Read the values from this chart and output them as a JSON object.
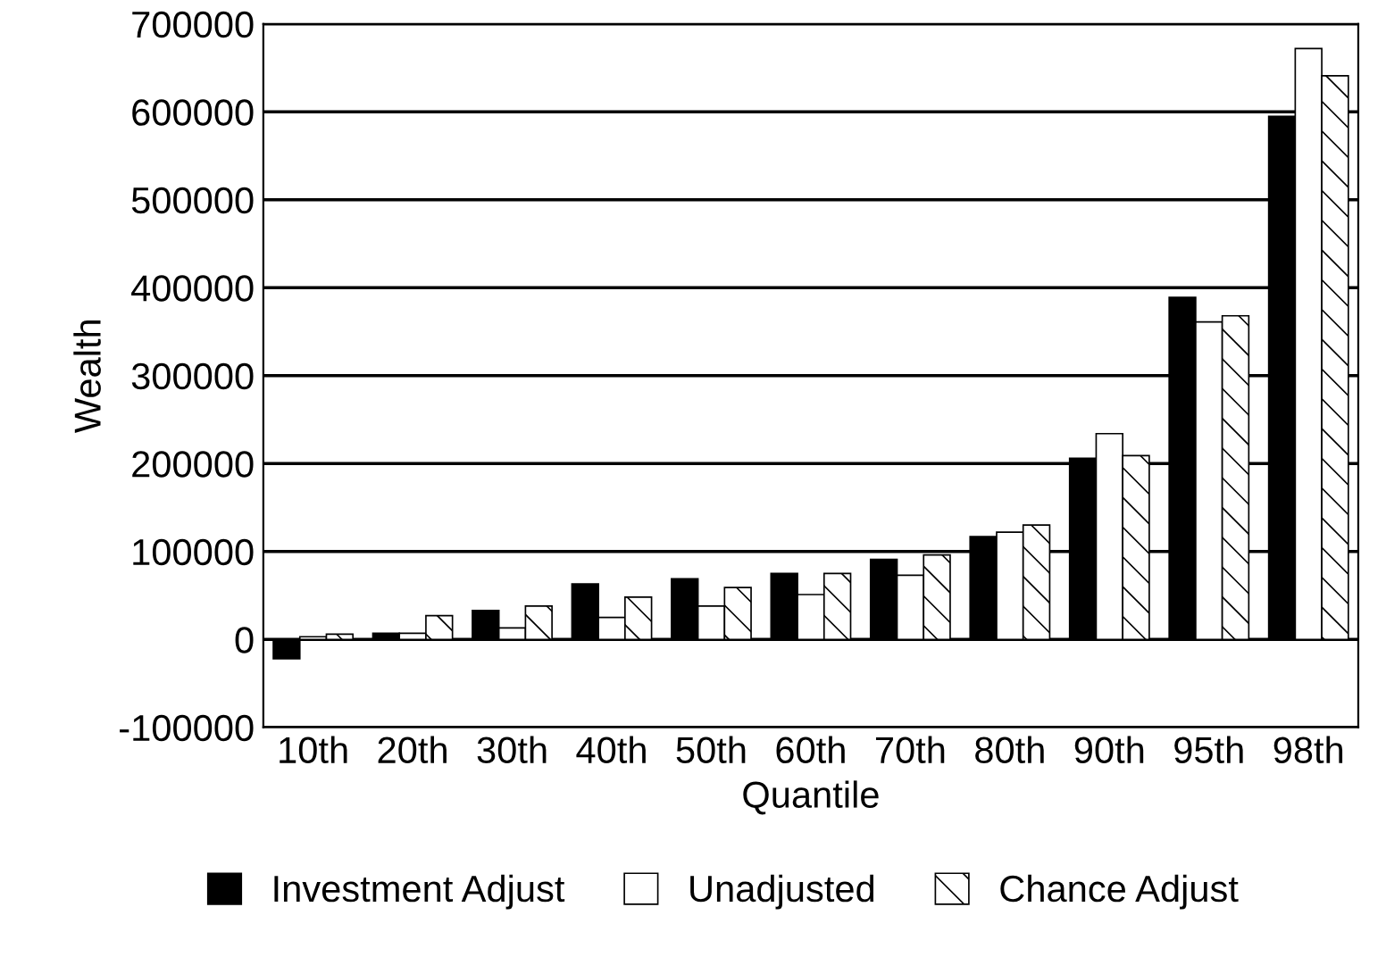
{
  "chart_data": {
    "type": "bar",
    "xlabel": "Quantile",
    "ylabel": "Wealth",
    "categories": [
      "10th",
      "20th",
      "30th",
      "40th",
      "50th",
      "60th",
      "70th",
      "80th",
      "90th",
      "95th",
      "98th"
    ],
    "series": [
      {
        "name": "Investment Adjust",
        "color": "#000000",
        "values": [
          -22000,
          7000,
          33000,
          63000,
          69000,
          75000,
          91000,
          117000,
          206000,
          389000,
          595000
        ]
      },
      {
        "name": "Unadjusted",
        "color": "#ffffff",
        "values": [
          3000,
          7000,
          13000,
          25000,
          38000,
          51000,
          73000,
          122000,
          234000,
          361000,
          672000
        ]
      },
      {
        "name": "Chance Adjust",
        "color": "#ffffff",
        "values": [
          6000,
          27000,
          38000,
          48000,
          59000,
          75000,
          96000,
          130000,
          209000,
          368000,
          641000
        ]
      }
    ],
    "ylim": [
      -100000,
      700000
    ],
    "yticks": [
      -100000,
      0,
      100000,
      200000,
      300000,
      400000,
      500000,
      600000,
      700000
    ],
    "grid": "y",
    "legend": "bottom"
  }
}
